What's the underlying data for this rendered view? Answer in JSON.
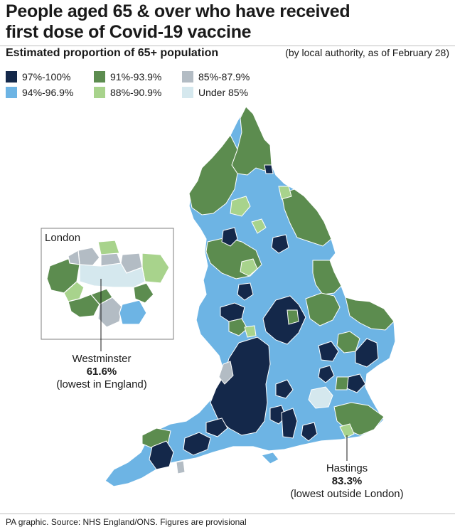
{
  "title": {
    "line1": "People aged 65 & over who have received",
    "line2": "first dose of Covid-19 vaccine"
  },
  "subtitle": "Estimated proportion of 65+ population",
  "as_of": "(by local authority, as of February 28)",
  "legend": [
    {
      "label": "97%-100%",
      "color": "#14284a"
    },
    {
      "label": "91%-93.9%",
      "color": "#5c8c4f"
    },
    {
      "label": "85%-87.9%",
      "color": "#b3bcc4"
    },
    {
      "label": "94%-96.9%",
      "color": "#6db4e4"
    },
    {
      "label": "88%-90.9%",
      "color": "#a8d38c"
    },
    {
      "label": "Under 85%",
      "color": "#d5e8ee"
    }
  ],
  "inset_label": "London",
  "annotations": {
    "westminster": {
      "place": "Westminster",
      "value": "61.6%",
      "note": "(lowest in England)"
    },
    "hastings": {
      "place": "Hastings",
      "value": "83.3%",
      "note": "(lowest outside London)"
    }
  },
  "source": "PA graphic. Source: NHS England/ONS. Figures are provisional"
}
